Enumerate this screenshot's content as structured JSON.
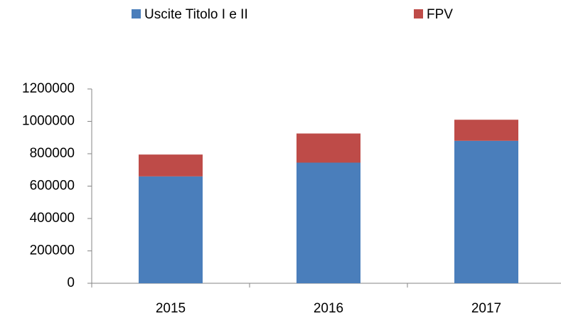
{
  "chart_data": {
    "type": "stacked_bar",
    "categories": [
      "2015",
      "2016",
      "2017"
    ],
    "series": [
      {
        "name": "Uscite Titolo I e II",
        "color": "#4a7ebb",
        "values": [
          660000,
          745000,
          880000
        ]
      },
      {
        "name": "FPV",
        "color": "#be4b48",
        "values": [
          135000,
          180000,
          130000
        ]
      }
    ],
    "ylim": [
      0,
      1200000
    ],
    "yticks": [
      0,
      200000,
      400000,
      600000,
      800000,
      1000000,
      1200000
    ],
    "grid": false,
    "legend": "top"
  }
}
